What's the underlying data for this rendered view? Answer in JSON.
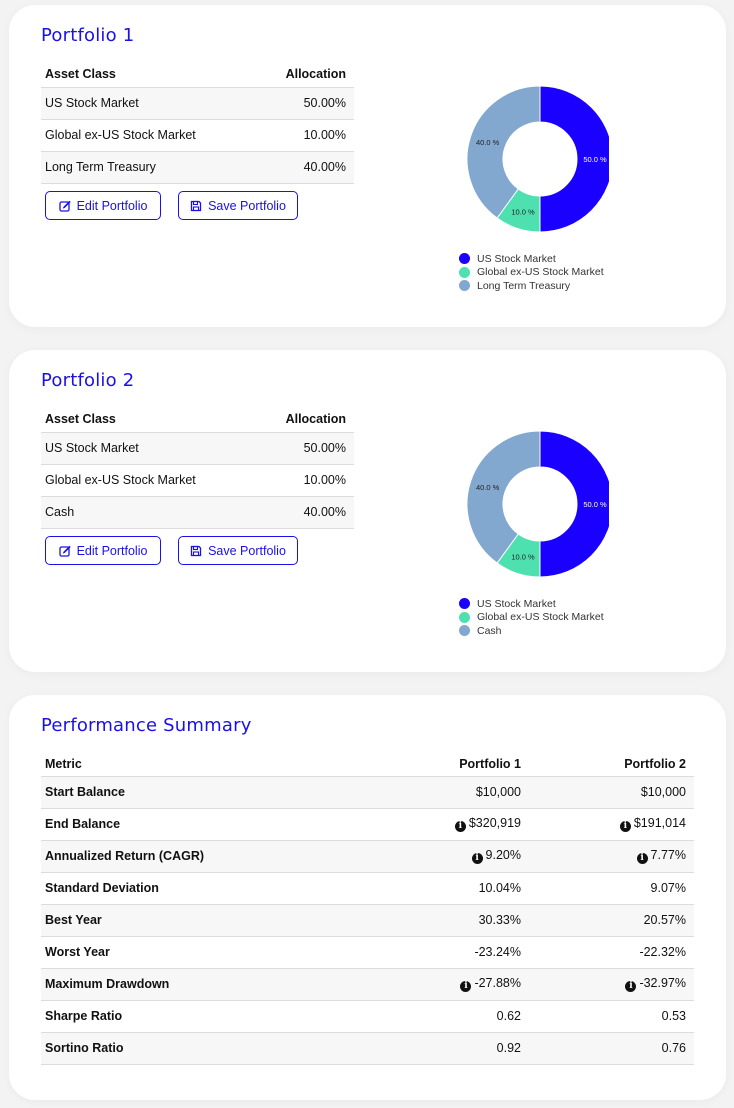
{
  "colors": {
    "accent": "#1a10e8",
    "us_stock": "#1a00ff",
    "global_stock": "#4fe0b0",
    "third_asset": "#82a8d0"
  },
  "portfolios": [
    {
      "title": "Portfolio 1",
      "table_headers": {
        "asset": "Asset Class",
        "allocation": "Allocation"
      },
      "rows": [
        {
          "asset": "US Stock Market",
          "allocation": "50.00%"
        },
        {
          "asset": "Global ex-US Stock Market",
          "allocation": "10.00%"
        },
        {
          "asset": "Long Term Treasury",
          "allocation": "40.00%"
        }
      ],
      "edit_label": "Edit Portfolio",
      "save_label": "Save Portfolio"
    },
    {
      "title": "Portfolio 2",
      "table_headers": {
        "asset": "Asset Class",
        "allocation": "Allocation"
      },
      "rows": [
        {
          "asset": "US Stock Market",
          "allocation": "50.00%"
        },
        {
          "asset": "Global ex-US Stock Market",
          "allocation": "10.00%"
        },
        {
          "asset": "Cash",
          "allocation": "40.00%"
        }
      ],
      "edit_label": "Edit Portfolio",
      "save_label": "Save Portfolio"
    }
  ],
  "chart_data": [
    {
      "type": "pie",
      "variant": "donut",
      "categories": [
        "US Stock Market",
        "Global ex-US Stock Market",
        "Long Term Treasury"
      ],
      "values": [
        50.0,
        10.0,
        40.0
      ],
      "labels": [
        "50.0 %",
        "10.0 %",
        "40.0 %"
      ],
      "colors": [
        "#1a00ff",
        "#4fe0b0",
        "#82a8d0"
      ],
      "legend": "bottom"
    },
    {
      "type": "pie",
      "variant": "donut",
      "categories": [
        "US Stock Market",
        "Global ex-US Stock Market",
        "Cash"
      ],
      "values": [
        50.0,
        10.0,
        40.0
      ],
      "labels": [
        "50.0 %",
        "10.0 %",
        "40.0 %"
      ],
      "colors": [
        "#1a00ff",
        "#4fe0b0",
        "#82a8d0"
      ],
      "legend": "bottom"
    }
  ],
  "performance": {
    "title": "Performance Summary",
    "headers": {
      "metric": "Metric",
      "p1": "Portfolio 1",
      "p2": "Portfolio 2"
    },
    "rows": [
      {
        "metric": "Start Balance",
        "p1": "$10,000",
        "p2": "$10,000",
        "info": false
      },
      {
        "metric": "End Balance",
        "p1": "$320,919",
        "p2": "$191,014",
        "info": true
      },
      {
        "metric": "Annualized Return (CAGR)",
        "p1": "9.20%",
        "p2": "7.77%",
        "info": true
      },
      {
        "metric": "Standard Deviation",
        "p1": "10.04%",
        "p2": "9.07%",
        "info": false
      },
      {
        "metric": "Best Year",
        "p1": "30.33%",
        "p2": "20.57%",
        "info": false
      },
      {
        "metric": "Worst Year",
        "p1": "-23.24%",
        "p2": "-22.32%",
        "info": false
      },
      {
        "metric": "Maximum Drawdown",
        "p1": "-27.88%",
        "p2": "-32.97%",
        "info": true
      },
      {
        "metric": "Sharpe Ratio",
        "p1": "0.62",
        "p2": "0.53",
        "info": false
      },
      {
        "metric": "Sortino Ratio",
        "p1": "0.92",
        "p2": "0.76",
        "info": false
      }
    ],
    "info_icon": "i"
  }
}
